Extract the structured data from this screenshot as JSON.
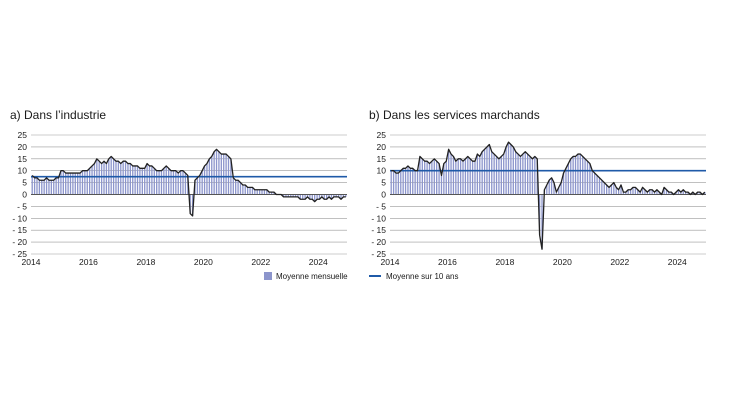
{
  "chart_data": [
    {
      "type": "bar",
      "title": "a)  Dans l’industrie",
      "xlabel": "",
      "ylabel": "",
      "ylim": [
        -25,
        25
      ],
      "yticks": [
        25,
        20,
        15,
        10,
        5,
        0,
        -5,
        -10,
        -15,
        -20,
        -25
      ],
      "xticks": [
        "2014",
        "2016",
        "2018",
        "2020",
        "2022",
        "2024"
      ],
      "xlim": [
        2014,
        2025
      ],
      "x_start": "2014-01",
      "grid": "horizontal",
      "reference_line": 7.5,
      "series": [
        {
          "name": "Moyenne mensuelle",
          "values": [
            8,
            7,
            7,
            6,
            6,
            6,
            7,
            6,
            6,
            6,
            7,
            7,
            10,
            10,
            9,
            9,
            9,
            9,
            9,
            9,
            9,
            10,
            10,
            10,
            11,
            12,
            13,
            15,
            14,
            13,
            14,
            13,
            15,
            16,
            15,
            14,
            14,
            13,
            14,
            14,
            13,
            13,
            12,
            12,
            12,
            11,
            11,
            11,
            13,
            12,
            12,
            11,
            10,
            10,
            10,
            11,
            12,
            11,
            10,
            10,
            10,
            9,
            10,
            10,
            9,
            8,
            -8,
            -9,
            6,
            7,
            8,
            10,
            12,
            13,
            15,
            16,
            18,
            19,
            18,
            17,
            17,
            17,
            16,
            15,
            7,
            6,
            6,
            5,
            4,
            4,
            3,
            3,
            3,
            2,
            2,
            2,
            2,
            2,
            2,
            1,
            1,
            1,
            0,
            0,
            0,
            -1,
            -1,
            -1,
            -1,
            -1,
            -1,
            -1,
            -2,
            -2,
            -2,
            -1,
            -2,
            -2,
            -3,
            -2,
            -2,
            -1,
            -2,
            -2,
            -1,
            -2,
            -1,
            -1,
            -1,
            -2,
            -1,
            -1
          ]
        }
      ],
      "legend": [
        "Moyenne mensuelle"
      ]
    },
    {
      "type": "bar",
      "title": "b)  Dans les services marchands",
      "xlabel": "",
      "ylabel": "",
      "ylim": [
        -25,
        25
      ],
      "yticks": [
        25,
        20,
        15,
        10,
        5,
        0,
        -5,
        -10,
        -15,
        -20,
        -25
      ],
      "xticks": [
        "2014",
        "2016",
        "2018",
        "2020",
        "2022",
        "2024"
      ],
      "xlim": [
        2014,
        2025
      ],
      "x_start": "2014-01",
      "grid": "horizontal",
      "reference_line": 10,
      "series": [
        {
          "name": "Moyenne mensuelle",
          "values": [
            10,
            10,
            9,
            9,
            10,
            11,
            11,
            12,
            11,
            11,
            10,
            10,
            16,
            15,
            14,
            14,
            13,
            14,
            15,
            14,
            13,
            8,
            13,
            14,
            19,
            17,
            16,
            14,
            15,
            15,
            14,
            15,
            16,
            15,
            14,
            14,
            17,
            16,
            18,
            19,
            20,
            21,
            18,
            17,
            16,
            15,
            16,
            17,
            20,
            22,
            21,
            20,
            18,
            17,
            16,
            17,
            18,
            17,
            16,
            15,
            16,
            15,
            -17,
            -23,
            2,
            4,
            6,
            7,
            5,
            1,
            3,
            5,
            9,
            11,
            13,
            15,
            16,
            16,
            17,
            17,
            16,
            15,
            14,
            13,
            10,
            9,
            8,
            7,
            6,
            5,
            4,
            3,
            4,
            5,
            3,
            2,
            4,
            1,
            1,
            2,
            2,
            3,
            3,
            2,
            1,
            3,
            2,
            1,
            2,
            2,
            1,
            2,
            1,
            0,
            3,
            2,
            1,
            1,
            0,
            1,
            2,
            1,
            2,
            1,
            1,
            0,
            1,
            0,
            1,
            1,
            0,
            1
          ]
        }
      ],
      "legend": [
        "Moyenne sur 10 ans"
      ]
    }
  ],
  "colors": {
    "bar": "#8c95cc",
    "line": "#222222",
    "reference": "#1f5aa8",
    "grid": "#9a9a9a",
    "zero": "#555555"
  }
}
